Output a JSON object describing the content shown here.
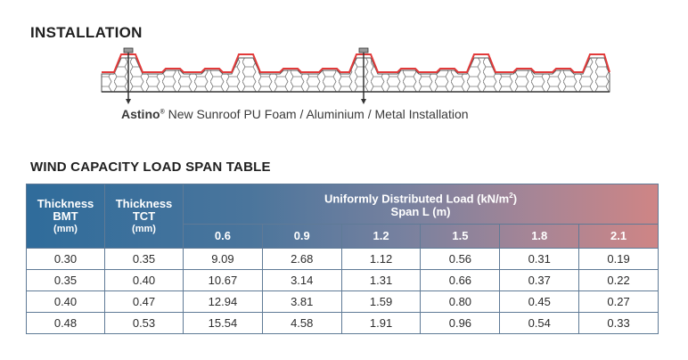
{
  "installation": {
    "title": "INSTALLATION",
    "caption_brand": "Astino",
    "caption_reg": "®",
    "caption_text": " New Sunroof PU Foam / Aluminium / Metal Installation"
  },
  "colors": {
    "roof_line": "#e23a3a",
    "table_border": "#5f7a96",
    "header_start": "#2f6c9b",
    "header_end": "#cf8585"
  },
  "wind_table": {
    "title": "WIND CAPACITY LOAD SPAN TABLE",
    "col_bmt": {
      "line1": "Thickness",
      "line2": "BMT",
      "unit": "(mm)"
    },
    "col_tct": {
      "line1": "Thickness",
      "line2": "TCT",
      "unit": "(mm)"
    },
    "load_label": "Uniformly Distributed Load (kN/m",
    "load_sup": "2",
    "load_close": ")",
    "span_label": "Span L (m)",
    "spans": [
      "0.6",
      "0.9",
      "1.2",
      "1.5",
      "1.8",
      "2.1"
    ],
    "rows": [
      [
        "0.30",
        "0.35",
        "9.09",
        "2.68",
        "1.12",
        "0.56",
        "0.31",
        "0.19"
      ],
      [
        "0.35",
        "0.40",
        "10.67",
        "3.14",
        "1.31",
        "0.66",
        "0.37",
        "0.22"
      ],
      [
        "0.40",
        "0.47",
        "12.94",
        "3.81",
        "1.59",
        "0.80",
        "0.45",
        "0.27"
      ],
      [
        "0.48",
        "0.53",
        "15.54",
        "4.58",
        "1.91",
        "0.96",
        "0.54",
        "0.33"
      ]
    ]
  }
}
